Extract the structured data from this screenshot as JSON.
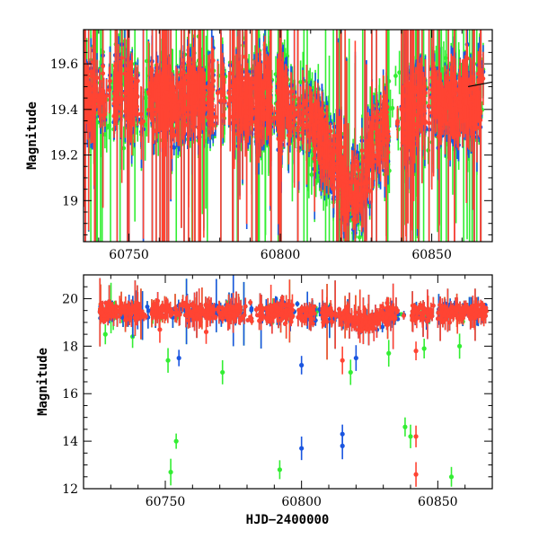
{
  "chart_data": [
    {
      "type": "scatter",
      "panel": "top",
      "xlabel": "",
      "ylabel": "Magnitude",
      "xlim": [
        60735,
        60870
      ],
      "ylim": [
        19.75,
        18.82
      ],
      "y_inverted": true,
      "x_ticks": [
        60750,
        60800,
        60850
      ],
      "y_ticks": [
        19,
        19.2,
        19.4,
        19.6
      ],
      "y_tick_labels": [
        "19",
        "19.2",
        "19.4",
        "19.6"
      ],
      "error_bars": true,
      "series": [
        {
          "color": "#33ee33",
          "baseline": [
            [
              60735,
              19.45
            ],
            [
              60790,
              19.45
            ],
            [
              60808,
              19.38
            ],
            [
              60815,
              19.25
            ],
            [
              60822,
              19.05
            ],
            [
              60826,
              19.05
            ],
            [
              60832,
              19.3
            ],
            [
              60845,
              19.42
            ],
            [
              60870,
              19.45
            ]
          ],
          "scatter": 0.13
        },
        {
          "color": "#1a55e0",
          "baseline": [
            [
              60735,
              19.45
            ],
            [
              60790,
              19.45
            ],
            [
              60808,
              19.38
            ],
            [
              60815,
              19.25
            ],
            [
              60822,
              19.05
            ],
            [
              60826,
              19.05
            ],
            [
              60832,
              19.3
            ],
            [
              60845,
              19.42
            ],
            [
              60870,
              19.45
            ]
          ],
          "scatter": 0.12
        },
        {
          "color": "#ff4433",
          "baseline": [
            [
              60735,
              19.45
            ],
            [
              60790,
              19.45
            ],
            [
              60808,
              19.38
            ],
            [
              60815,
              19.25
            ],
            [
              60822,
              19.05
            ],
            [
              60826,
              19.05
            ],
            [
              60832,
              19.3
            ],
            [
              60845,
              19.42
            ],
            [
              60870,
              19.45
            ]
          ],
          "scatter": 0.09
        }
      ],
      "model_line": [
        [
          60862,
          19.5
        ],
        [
          60870,
          19.52
        ]
      ]
    },
    {
      "type": "scatter",
      "panel": "bottom",
      "xlabel": "HJD−2400000",
      "ylabel": "Magnitude",
      "xlim": [
        60720,
        60870
      ],
      "ylim": [
        21,
        12
      ],
      "y_inverted": true,
      "x_ticks": [
        60750,
        60800,
        60850
      ],
      "y_ticks": [
        12,
        14,
        16,
        18,
        20
      ],
      "y_tick_labels": [
        "12",
        "14",
        "16",
        "18",
        "20"
      ],
      "error_bars": true,
      "series": [
        {
          "color": "#33ee33",
          "outliers": [
            [
              60752,
              12.7
            ],
            [
              60754,
              14.0
            ],
            [
              60792,
              12.8
            ],
            [
              60838,
              14.6
            ],
            [
              60840,
              14.2
            ],
            [
              60855,
              12.5
            ],
            [
              60771,
              16.9
            ],
            [
              60751,
              17.4
            ],
            [
              60728,
              18.5
            ],
            [
              60738,
              18.4
            ],
            [
              60818,
              16.9
            ],
            [
              60832,
              17.7
            ],
            [
              60845,
              17.9
            ],
            [
              60858,
              18.0
            ]
          ]
        },
        {
          "color": "#1a55e0",
          "outliers": [
            [
              60800,
              13.7
            ],
            [
              60815,
              13.8
            ],
            [
              60815,
              14.3
            ],
            [
              60800,
              17.2
            ],
            [
              60755,
              17.5
            ],
            [
              60820,
              17.5
            ]
          ]
        },
        {
          "color": "#ff4433",
          "outliers": [
            [
              60842,
              12.6
            ],
            [
              60842,
              14.2
            ],
            [
              60815,
              17.4
            ],
            [
              60842,
              17.8
            ],
            [
              60765,
              18.6
            ],
            [
              60748,
              18.7
            ]
          ]
        }
      ]
    }
  ]
}
